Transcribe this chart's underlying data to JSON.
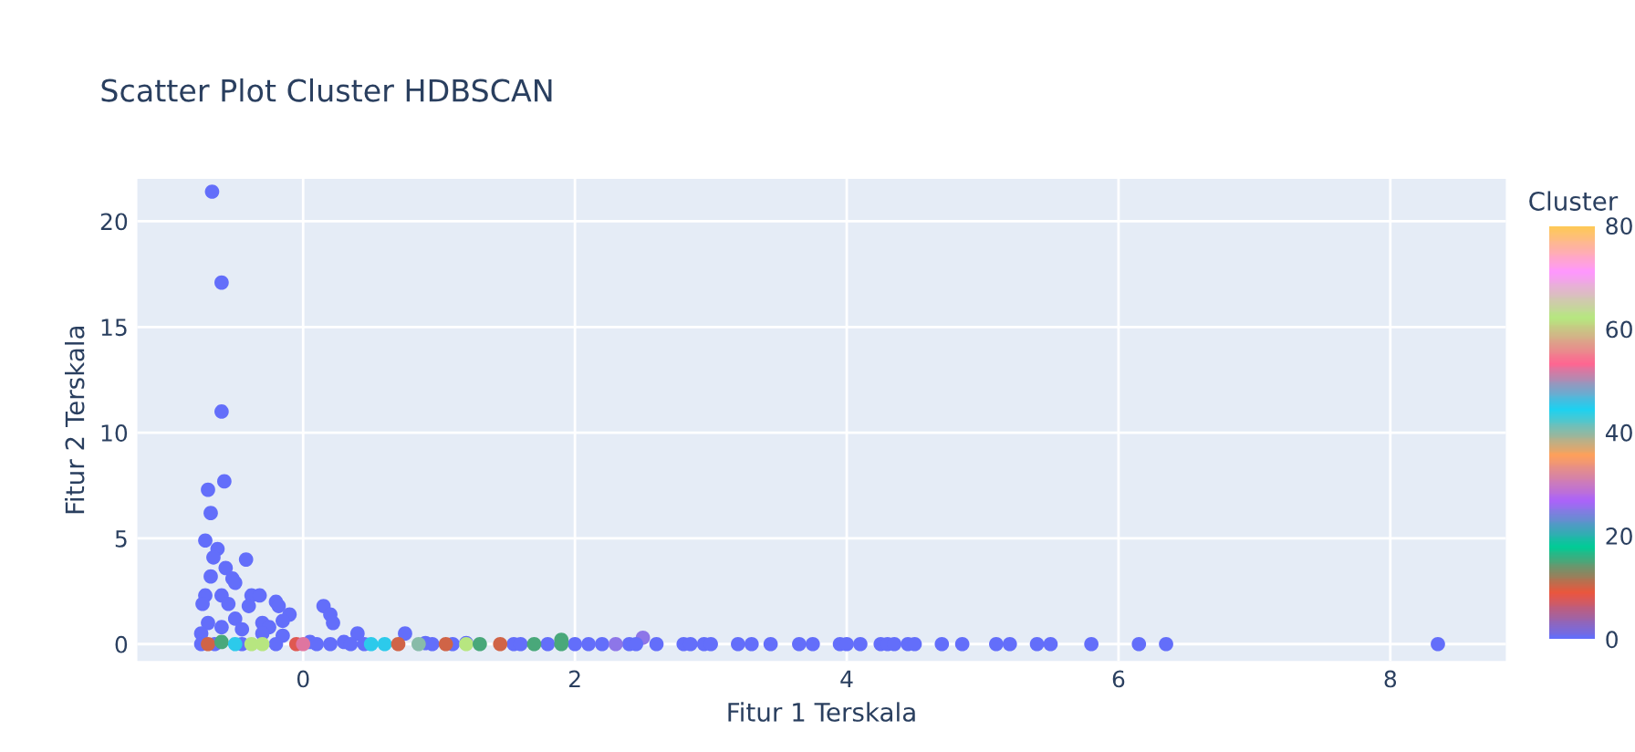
{
  "chart_data": {
    "type": "scatter",
    "title": "Scatter Plot Cluster HDBSCAN",
    "xlabel": "Fitur 1 Terskala",
    "ylabel": "Fitur 2 Terskala",
    "clabel": "Cluster",
    "x": [
      -0.67,
      -0.6,
      -0.6,
      -0.58,
      -0.7,
      -0.68,
      -0.72,
      -0.63,
      -0.66,
      -0.57,
      -0.68,
      -0.52,
      -0.5,
      -0.42,
      -0.72,
      -0.6,
      -0.38,
      -0.32,
      -0.2,
      -0.18,
      -0.74,
      -0.55,
      -0.4,
      -0.1,
      -0.15,
      -0.3,
      -0.5,
      -0.7,
      -0.6,
      -0.45,
      -0.25,
      -0.75,
      -0.3,
      -0.15,
      0.15,
      0.2,
      0.22,
      0.4,
      0.75,
      0.05,
      0.3,
      0.9,
      1.2,
      1.9,
      2.5,
      -0.75,
      -0.65,
      -0.45,
      -0.2,
      0.1,
      0.2,
      0.35,
      0.45,
      0.95,
      1.1,
      1.55,
      1.6,
      1.8,
      2.0,
      2.1,
      2.2,
      2.4,
      2.45,
      2.6,
      2.8,
      2.85,
      2.95,
      3.0,
      3.2,
      3.3,
      3.44,
      3.65,
      3.75,
      3.95,
      4.0,
      4.1,
      4.25,
      4.3,
      4.35,
      4.45,
      4.5,
      4.7,
      4.85,
      5.1,
      5.2,
      5.4,
      5.5,
      5.8,
      6.15,
      6.35,
      8.35,
      -0.7,
      -0.6,
      -0.5,
      -0.38,
      -0.3,
      -0.05,
      0.0,
      0.5,
      0.6,
      0.7,
      0.85,
      1.05,
      1.2,
      1.3,
      1.45,
      1.7,
      1.9,
      2.3
    ],
    "values": [
      21.4,
      17.1,
      11,
      7.7,
      7.3,
      6.2,
      4.9,
      4.5,
      4.1,
      3.6,
      3.2,
      3.1,
      2.9,
      4.0,
      2.3,
      2.3,
      2.3,
      2.3,
      2.0,
      1.8,
      1.9,
      1.9,
      1.8,
      1.4,
      1.1,
      1.0,
      1.2,
      1.0,
      0.8,
      0.7,
      0.8,
      0.5,
      0.5,
      0.4,
      1.8,
      1.4,
      1.0,
      0.5,
      0.5,
      0.1,
      0.1,
      0.05,
      0.05,
      0.2,
      0.3,
      0,
      0,
      0,
      0,
      0,
      0,
      0,
      0,
      0,
      0,
      0,
      0,
      0,
      0,
      0,
      0,
      0,
      0,
      0,
      0,
      0,
      0,
      0,
      0,
      0,
      0,
      0,
      0,
      0,
      0,
      0,
      0,
      0,
      0,
      0,
      0,
      0,
      0,
      0,
      0,
      0,
      0,
      0,
      0,
      0,
      0,
      0,
      0.1,
      0,
      0,
      0,
      0,
      0,
      0,
      0,
      0,
      0,
      0,
      0,
      0,
      0,
      0,
      0,
      0
    ],
    "cvalues": [
      0,
      0,
      0,
      0,
      0,
      0,
      0,
      0,
      0,
      0,
      0,
      0,
      0,
      0,
      0,
      0,
      0,
      0,
      0,
      0,
      0,
      0,
      0,
      0,
      0,
      0,
      0,
      0,
      0,
      0,
      0,
      0,
      0,
      0,
      0,
      0,
      0,
      0,
      0,
      0,
      0,
      0,
      0,
      15,
      25,
      0,
      0,
      0,
      0,
      0,
      0,
      0,
      0,
      0,
      0,
      0,
      0,
      0,
      0,
      0,
      0,
      0,
      0,
      0,
      0,
      0,
      0,
      0,
      0,
      0,
      0,
      0,
      0,
      0,
      0,
      0,
      0,
      0,
      0,
      0,
      0,
      0,
      0,
      0,
      0,
      0,
      0,
      0,
      0,
      0,
      0,
      10,
      15,
      45,
      62,
      62,
      8,
      52,
      45,
      45,
      10,
      40,
      10,
      62,
      15,
      10,
      15,
      15,
      25
    ],
    "xlim": [
      -1.22,
      8.85
    ],
    "ylim": [
      -0.8,
      22
    ],
    "xticks": [
      0,
      2,
      4,
      6,
      8
    ],
    "yticks": [
      0,
      5,
      10,
      15,
      20
    ],
    "clim": [
      0,
      80
    ],
    "cticks": [
      0,
      20,
      40,
      60,
      80
    ],
    "grid": true,
    "marker": "circle"
  }
}
